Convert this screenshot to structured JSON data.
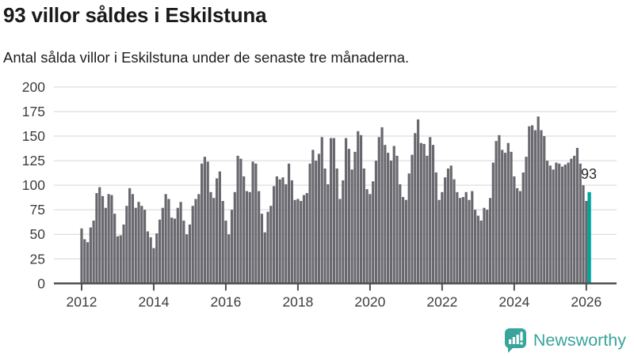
{
  "header": {
    "title": "93 villor såldes i Eskilstuna",
    "subtitle": "Antal sålda villor i Eskilstuna under de senaste tre månaderna."
  },
  "chart_data": {
    "type": "bar",
    "title": "93 villor såldes i Eskilstuna",
    "subtitle": "Antal sålda villor i Eskilstuna under de senaste tre månaderna.",
    "frequency": "monthly",
    "x_start": "2012-01",
    "x_end": "2026-02",
    "values": [
      56,
      45,
      42,
      57,
      64,
      92,
      98,
      89,
      77,
      91,
      90,
      71,
      48,
      49,
      60,
      79,
      97,
      91,
      77,
      83,
      79,
      75,
      53,
      47,
      36,
      51,
      65,
      77,
      91,
      86,
      67,
      66,
      77,
      83,
      64,
      50,
      60,
      79,
      86,
      91,
      122,
      129,
      124,
      93,
      87,
      107,
      114,
      84,
      64,
      50,
      75,
      93,
      130,
      127,
      109,
      94,
      93,
      124,
      122,
      94,
      71,
      52,
      73,
      79,
      99,
      109,
      106,
      108,
      101,
      122,
      105,
      85,
      86,
      84,
      90,
      92,
      122,
      136,
      125,
      132,
      149,
      117,
      101,
      148,
      148,
      117,
      86,
      105,
      148,
      137,
      116,
      134,
      155,
      151,
      117,
      96,
      91,
      104,
      125,
      149,
      159,
      141,
      133,
      125,
      140,
      130,
      101,
      88,
      85,
      112,
      131,
      153,
      167,
      143,
      142,
      130,
      149,
      141,
      113,
      85,
      93,
      108,
      117,
      120,
      106,
      93,
      87,
      88,
      93,
      85,
      94,
      75,
      69,
      64,
      77,
      75,
      87,
      123,
      145,
      151,
      136,
      133,
      143,
      134,
      109,
      97,
      94,
      113,
      129,
      160,
      161,
      156,
      170,
      156,
      150,
      125,
      120,
      116,
      123,
      122,
      119,
      121,
      123,
      127,
      130,
      138,
      122,
      100,
      84,
      93
    ],
    "ylim": [
      0,
      200
    ],
    "yticks": [
      0,
      25,
      50,
      75,
      100,
      125,
      150,
      175,
      200
    ],
    "xticks": [
      "2012",
      "2014",
      "2016",
      "2018",
      "2020",
      "2022",
      "2024",
      "2026"
    ],
    "grid": "horizontal",
    "legend": "none",
    "xlabel": "",
    "ylabel": "",
    "bar_color": "#68686E",
    "highlight_color": "#00A79E",
    "highlight": {
      "index": 169,
      "value": 93,
      "label": "93"
    }
  },
  "annotation": {
    "last_value_label": "93"
  },
  "axis_style": {
    "tick_label_color": "#3d3d3d",
    "grid_color": "#e3e3e3",
    "axis_line_color": "#4f4f4f"
  },
  "branding": {
    "logo_text": "Newsworthy",
    "logo_icon": "newsworthy-speech-bubble-chart-icon",
    "color": "#38A49C"
  }
}
